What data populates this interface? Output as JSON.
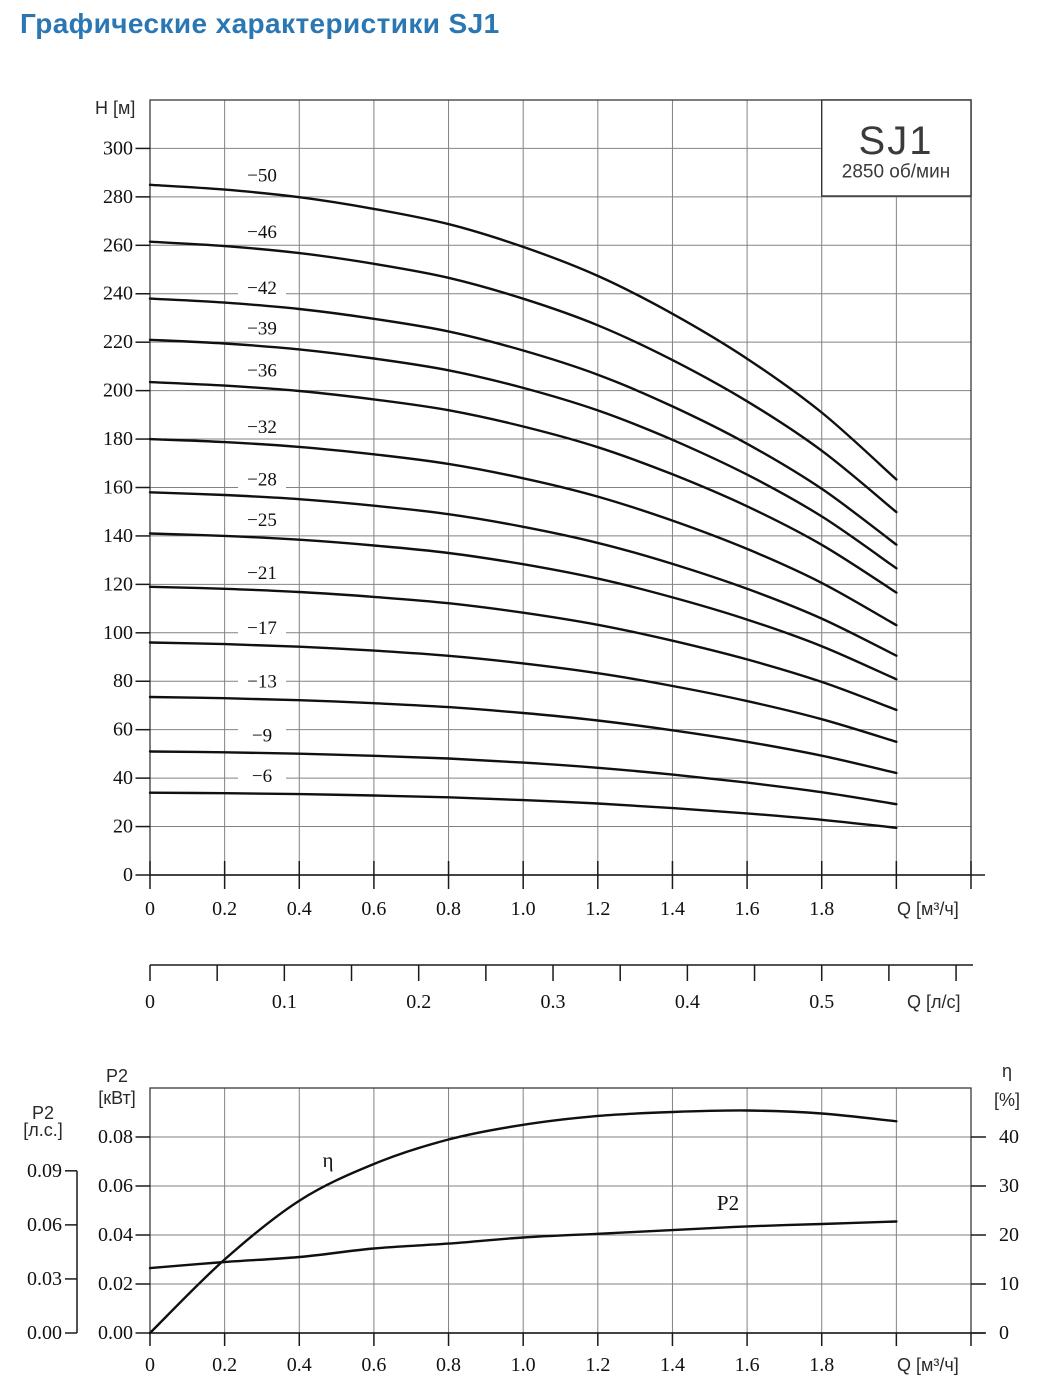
{
  "page": {
    "title": "Графические характеристики SJ1",
    "title_color": "#2b77b4"
  },
  "model_box": {
    "model": "SJ1",
    "speed": "2850 об/мин"
  },
  "colors": {
    "curve": "#101010",
    "grid": "#828282",
    "title_blue": "#2b77b4"
  },
  "chart_data": [
    {
      "type": "line",
      "name": "head-flow-curves",
      "title": "SJ1 2850 об/мин",
      "ylabel": "H [м]",
      "xlabel": "Q [м³/ч]",
      "x2label": "Q [л/с]",
      "xlim": [
        0,
        2.2
      ],
      "ylim": [
        0,
        320
      ],
      "grid": true,
      "y_ticks": [
        300,
        280,
        260,
        240,
        220,
        200,
        180,
        160,
        140,
        120,
        100,
        80,
        60,
        40,
        20,
        0
      ],
      "x_ticks": [
        "0",
        "0.2",
        "0.4",
        "0.6",
        "0.8",
        "1.0",
        "1.2",
        "1.4",
        "1.6",
        "1.8"
      ],
      "x2_ticks": [
        "0",
        "0.1",
        "0.2",
        "0.3",
        "0.4",
        "0.5"
      ],
      "x": [
        0,
        0.2,
        0.4,
        0.6,
        0.8,
        1.0,
        1.2,
        1.4,
        1.6,
        1.8,
        2.0
      ],
      "head_ratio": [
        1,
        0.993,
        0.982,
        0.965,
        0.943,
        0.91,
        0.868,
        0.813,
        0.748,
        0.67,
        0.573
      ],
      "series": [
        {
          "name": "−50",
          "h0": 285
        },
        {
          "name": "−46",
          "h0": 261.5
        },
        {
          "name": "−42",
          "h0": 238
        },
        {
          "name": "−39",
          "h0": 221
        },
        {
          "name": "−36",
          "h0": 203.5
        },
        {
          "name": "−32",
          "h0": 180
        },
        {
          "name": "−28",
          "h0": 158
        },
        {
          "name": "−25",
          "h0": 141
        },
        {
          "name": "−21",
          "h0": 119
        },
        {
          "name": "−17",
          "h0": 96
        },
        {
          "name": "−13",
          "h0": 73.5
        },
        {
          "name": "−9",
          "h0": 51
        },
        {
          "name": "−6",
          "h0": 34
        }
      ]
    },
    {
      "type": "line",
      "name": "power-efficiency-curves",
      "xlabel": "Q [м³/ч]",
      "ylabel_left_1": "P2",
      "ylabel_left_2": "[кВт]",
      "ylabel_hp_1": "P2",
      "ylabel_hp_2": "[л.с.]",
      "ylabel_right_1": "η",
      "ylabel_right_2": "[%]",
      "x_ticks": [
        "0",
        "0.2",
        "0.4",
        "0.6",
        "0.8",
        "1.0",
        "1.2",
        "1.4",
        "1.6",
        "1.8"
      ],
      "y_ticks_kw": [
        "0.00",
        "0.02",
        "0.04",
        "0.06",
        "0.08"
      ],
      "y_ticks_hp": [
        "0.00",
        "0.03",
        "0.06",
        "0.09"
      ],
      "y_ticks_eta": [
        "0",
        "10",
        "20",
        "30",
        "40"
      ],
      "ylim_kw": [
        0,
        0.1
      ],
      "ylim_eta": [
        0,
        50
      ],
      "x": [
        0,
        0.2,
        0.4,
        0.6,
        0.8,
        1.0,
        1.2,
        1.4,
        1.6,
        1.8,
        2.0
      ],
      "p2_kw": [
        0.0265,
        0.029,
        0.031,
        0.0345,
        0.0365,
        0.039,
        0.0405,
        0.042,
        0.0435,
        0.0445,
        0.0455
      ],
      "eta_pct": [
        0,
        15,
        27,
        34.5,
        39.5,
        42.5,
        44.3,
        45.1,
        45.4,
        44.8,
        43.2
      ],
      "curve_labels": {
        "p2": "P2",
        "eta": "η"
      }
    }
  ]
}
